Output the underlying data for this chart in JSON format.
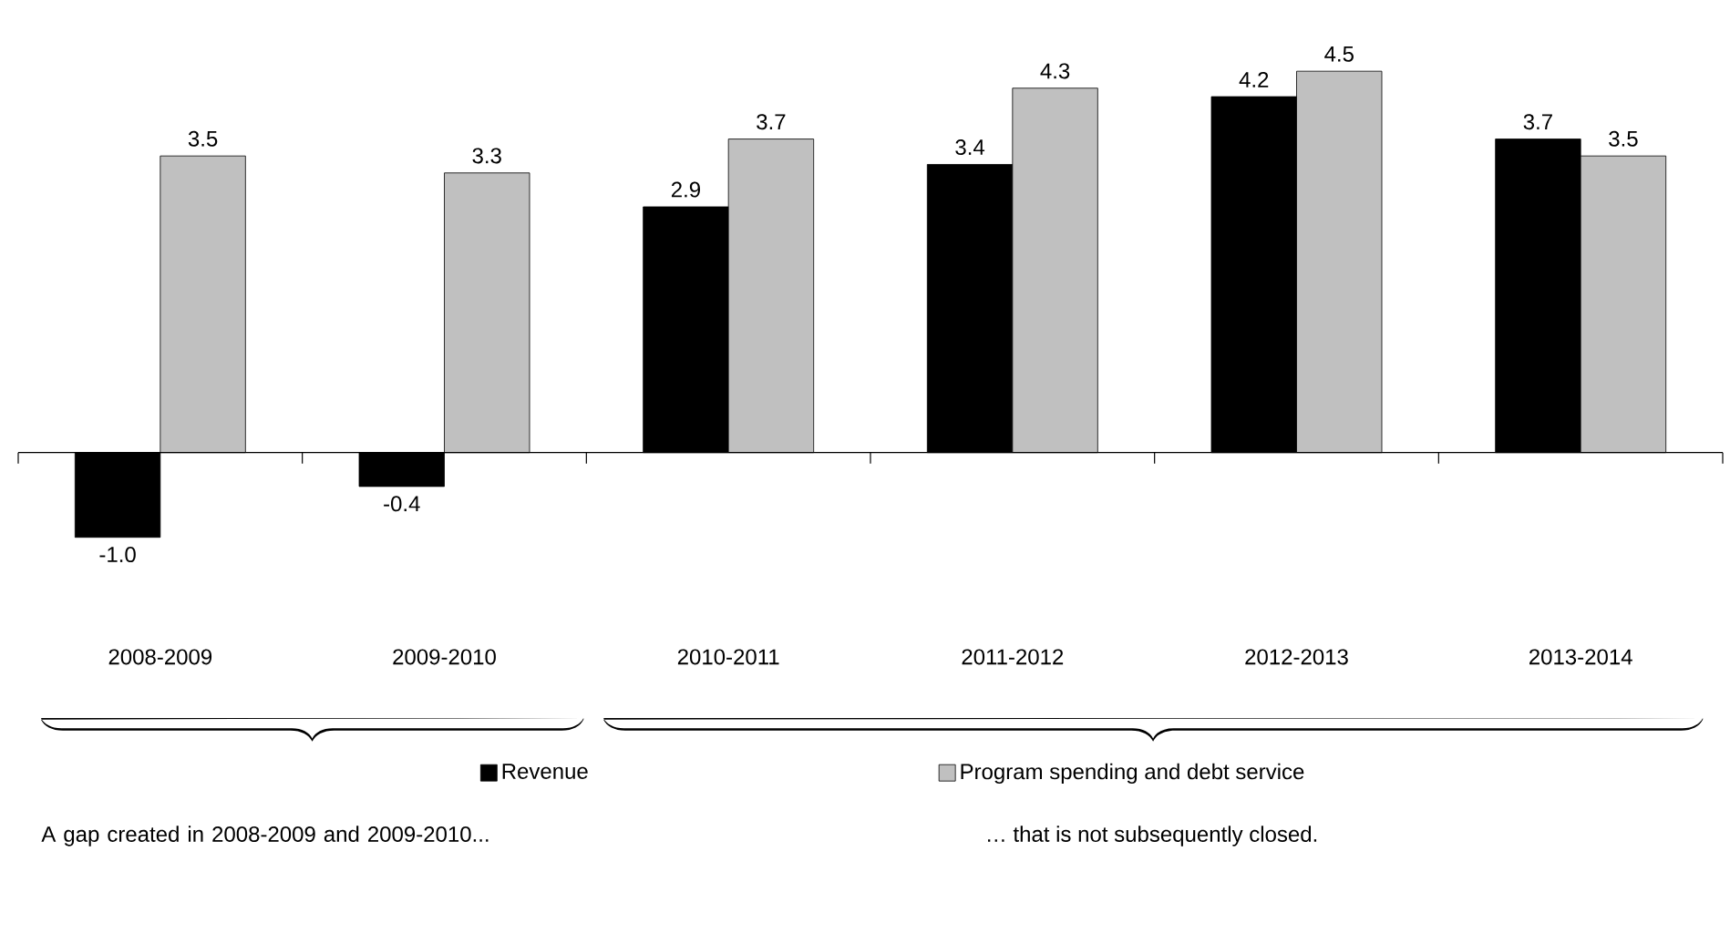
{
  "chart_data": {
    "type": "bar",
    "categories": [
      "2008-2009",
      "2009-2010",
      "2010-2011",
      "2011-2012",
      "2012-2013",
      "2013-2014"
    ],
    "series": [
      {
        "name": "Revenue",
        "color": "#000000",
        "values": [
          -1.0,
          -0.4,
          2.9,
          3.4,
          4.2,
          3.7
        ],
        "value_labels": [
          "-1.0",
          "-0.4",
          "2.9",
          "3.4",
          "4.2",
          "3.7"
        ]
      },
      {
        "name": "Program spending and debt service",
        "color": "#c0c0c0",
        "values": [
          3.5,
          3.3,
          3.7,
          4.3,
          4.5,
          3.5
        ],
        "value_labels": [
          "3.5",
          "3.3",
          "3.7",
          "4.3",
          "4.5",
          "3.5"
        ]
      }
    ],
    "legend": "bottom",
    "annotations": [
      "A gap created in 2008-2009 and 2009-2010...",
      "… that is not subsequently closed."
    ]
  }
}
